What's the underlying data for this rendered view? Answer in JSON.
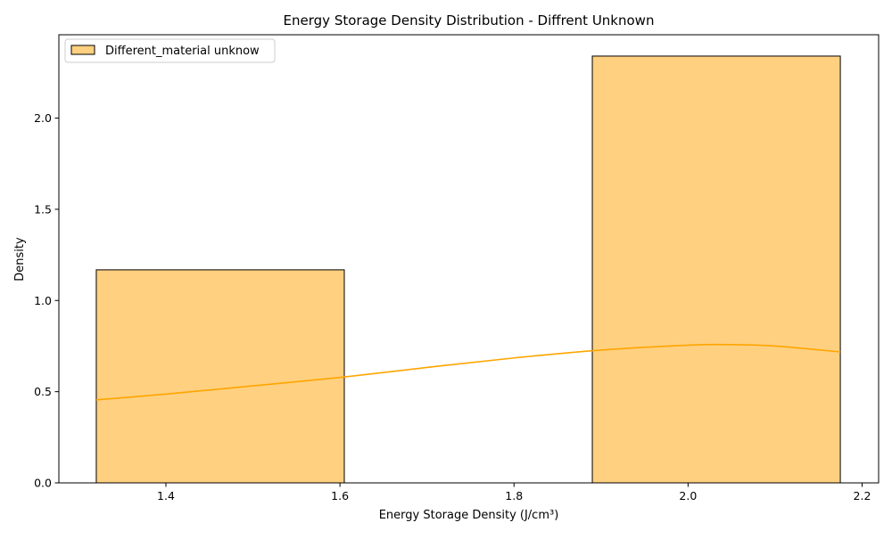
{
  "chart_data": {
    "type": "bar",
    "title": "Energy Storage Density Distribution - Diffrent Unknown",
    "xlabel": "Energy Storage Density (J/cm³)",
    "ylabel": "Density",
    "xlim": [
      1.277,
      2.219
    ],
    "ylim": [
      0,
      2.457
    ],
    "grid": false,
    "legend_position": "top-left",
    "x_ticks": [
      "1.4",
      "1.6",
      "1.8",
      "2.0",
      "2.2"
    ],
    "y_ticks": [
      "0.0",
      "0.5",
      "1.0",
      "1.5",
      "2.0"
    ],
    "series": [
      {
        "name": "Different_material unknow",
        "kind": "histogram",
        "bins": [
          {
            "x0": 1.32,
            "x1": 1.605,
            "value": 1.168
          },
          {
            "x0": 1.605,
            "x1": 1.89,
            "value": 0
          },
          {
            "x0": 1.89,
            "x1": 2.175,
            "value": 2.34
          }
        ],
        "kde": {
          "x": [
            1.32,
            1.4,
            1.5,
            1.6,
            1.7,
            1.8,
            1.9,
            2.0,
            2.05,
            2.1,
            2.175
          ],
          "y": [
            0.455,
            0.487,
            0.532,
            0.578,
            0.633,
            0.685,
            0.728,
            0.755,
            0.758,
            0.75,
            0.718
          ]
        }
      }
    ],
    "colors": {
      "bar_fill": "#ffd080",
      "bar_edge": "#000000",
      "kde_line": "#ffa500"
    }
  }
}
